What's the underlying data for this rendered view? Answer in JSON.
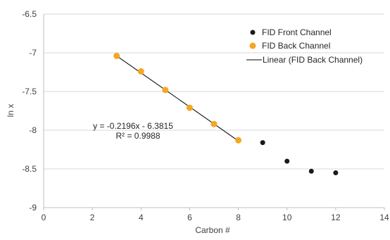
{
  "chart_data": {
    "type": "scatter",
    "xlabel": "Carbon #",
    "ylabel": "ln x",
    "xlim": [
      0,
      14
    ],
    "ylim": [
      -9,
      -6.5
    ],
    "x_ticks": [
      "0",
      "2",
      "4",
      "6",
      "8",
      "10",
      "12",
      "14"
    ],
    "x_tick_values": [
      0,
      2,
      4,
      6,
      8,
      10,
      12,
      14
    ],
    "y_ticks": [
      "-6.5",
      "-7",
      "-7.5",
      "-8",
      "-8.5",
      "-9"
    ],
    "y_tick_values": [
      -6.5,
      -7,
      -7.5,
      -8,
      -8.5,
      -9
    ],
    "grid": "horizontal",
    "legend_position": "top-right",
    "series": [
      {
        "name": "FID Front Channel",
        "color": "#1a1a1a",
        "x": [
          9,
          10,
          11,
          12
        ],
        "y": [
          -8.16,
          -8.4,
          -8.53,
          -8.55
        ]
      },
      {
        "name": "FID Back Channel",
        "color": "#f5a623",
        "x": [
          3,
          4,
          5,
          6,
          7,
          8
        ],
        "y": [
          -7.04,
          -7.24,
          -7.48,
          -7.71,
          -7.92,
          -8.13
        ]
      }
    ],
    "trendline": {
      "name": "Linear (FID Back Channel)",
      "color": "#000000",
      "slope": -0.2196,
      "intercept": -6.3815,
      "x_range": [
        3,
        8
      ],
      "equation_label": "y = -0.2196x - 6.3815",
      "r2_label": "R² = 0.9988"
    }
  }
}
